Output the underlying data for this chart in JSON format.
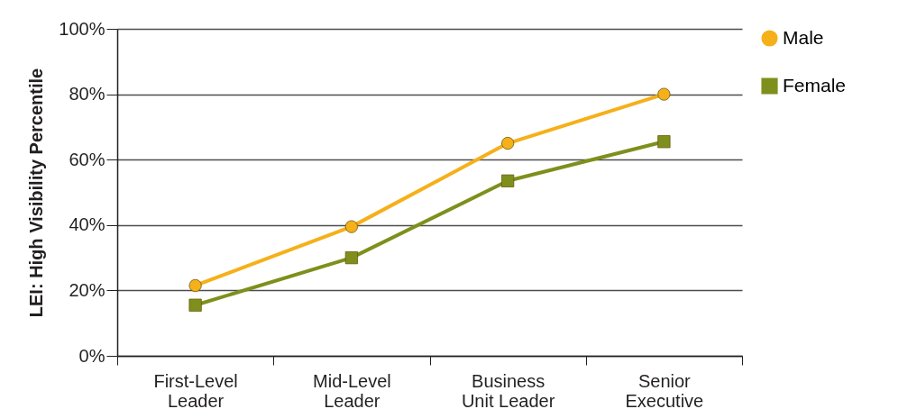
{
  "chart_data": {
    "type": "line",
    "ylabel": "LEI: High Visibility Percentile",
    "categories": [
      "First-Level Leader",
      "Mid-Level Leader",
      "Business Unit Leader",
      "Senior Executive"
    ],
    "series": [
      {
        "name": "Male",
        "color": "#f5b01a",
        "marker": "circle",
        "values": [
          21.5,
          39.5,
          65,
          80
        ]
      },
      {
        "name": "Female",
        "color": "#7f8f1c",
        "marker": "square",
        "values": [
          15.5,
          30,
          53.5,
          65.5
        ]
      }
    ],
    "ylim": [
      0,
      100
    ],
    "yticks": [
      {
        "value": 0,
        "label": "0%"
      },
      {
        "value": 20,
        "label": "20%"
      },
      {
        "value": 40,
        "label": "40%"
      },
      {
        "value": 60,
        "label": "60%"
      },
      {
        "value": 80,
        "label": "80%"
      },
      {
        "value": 100,
        "label": "100%"
      }
    ],
    "grid": "y",
    "legend": "right"
  }
}
